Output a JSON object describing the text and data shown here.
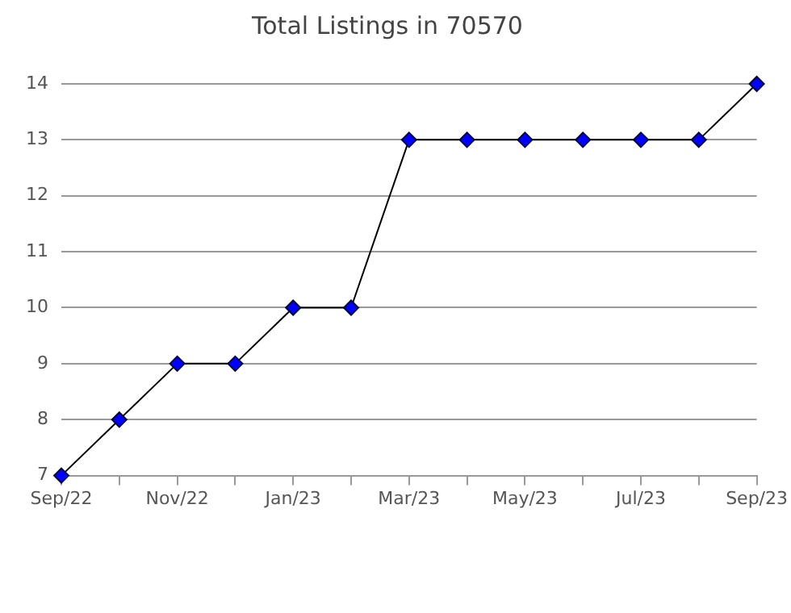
{
  "chart_data": {
    "type": "line",
    "title": "Total Listings in 70570",
    "categories": [
      "Sep/22",
      null,
      "Nov/22",
      null,
      "Jan/23",
      null,
      "Mar/23",
      null,
      "May/23",
      null,
      "Jul/23",
      null,
      "Sep/23"
    ],
    "series": [
      {
        "color": "#0000ff",
        "values": [
          7,
          8,
          9,
          9,
          10,
          10,
          13,
          13,
          13,
          13,
          13,
          13,
          14
        ]
      }
    ],
    "ylim": [
      7,
      14
    ],
    "yticks": [
      7,
      8,
      9,
      10,
      11,
      12,
      13,
      14
    ],
    "grid": "y",
    "marker": "diamond",
    "line_style": "solid",
    "legend": false
  }
}
